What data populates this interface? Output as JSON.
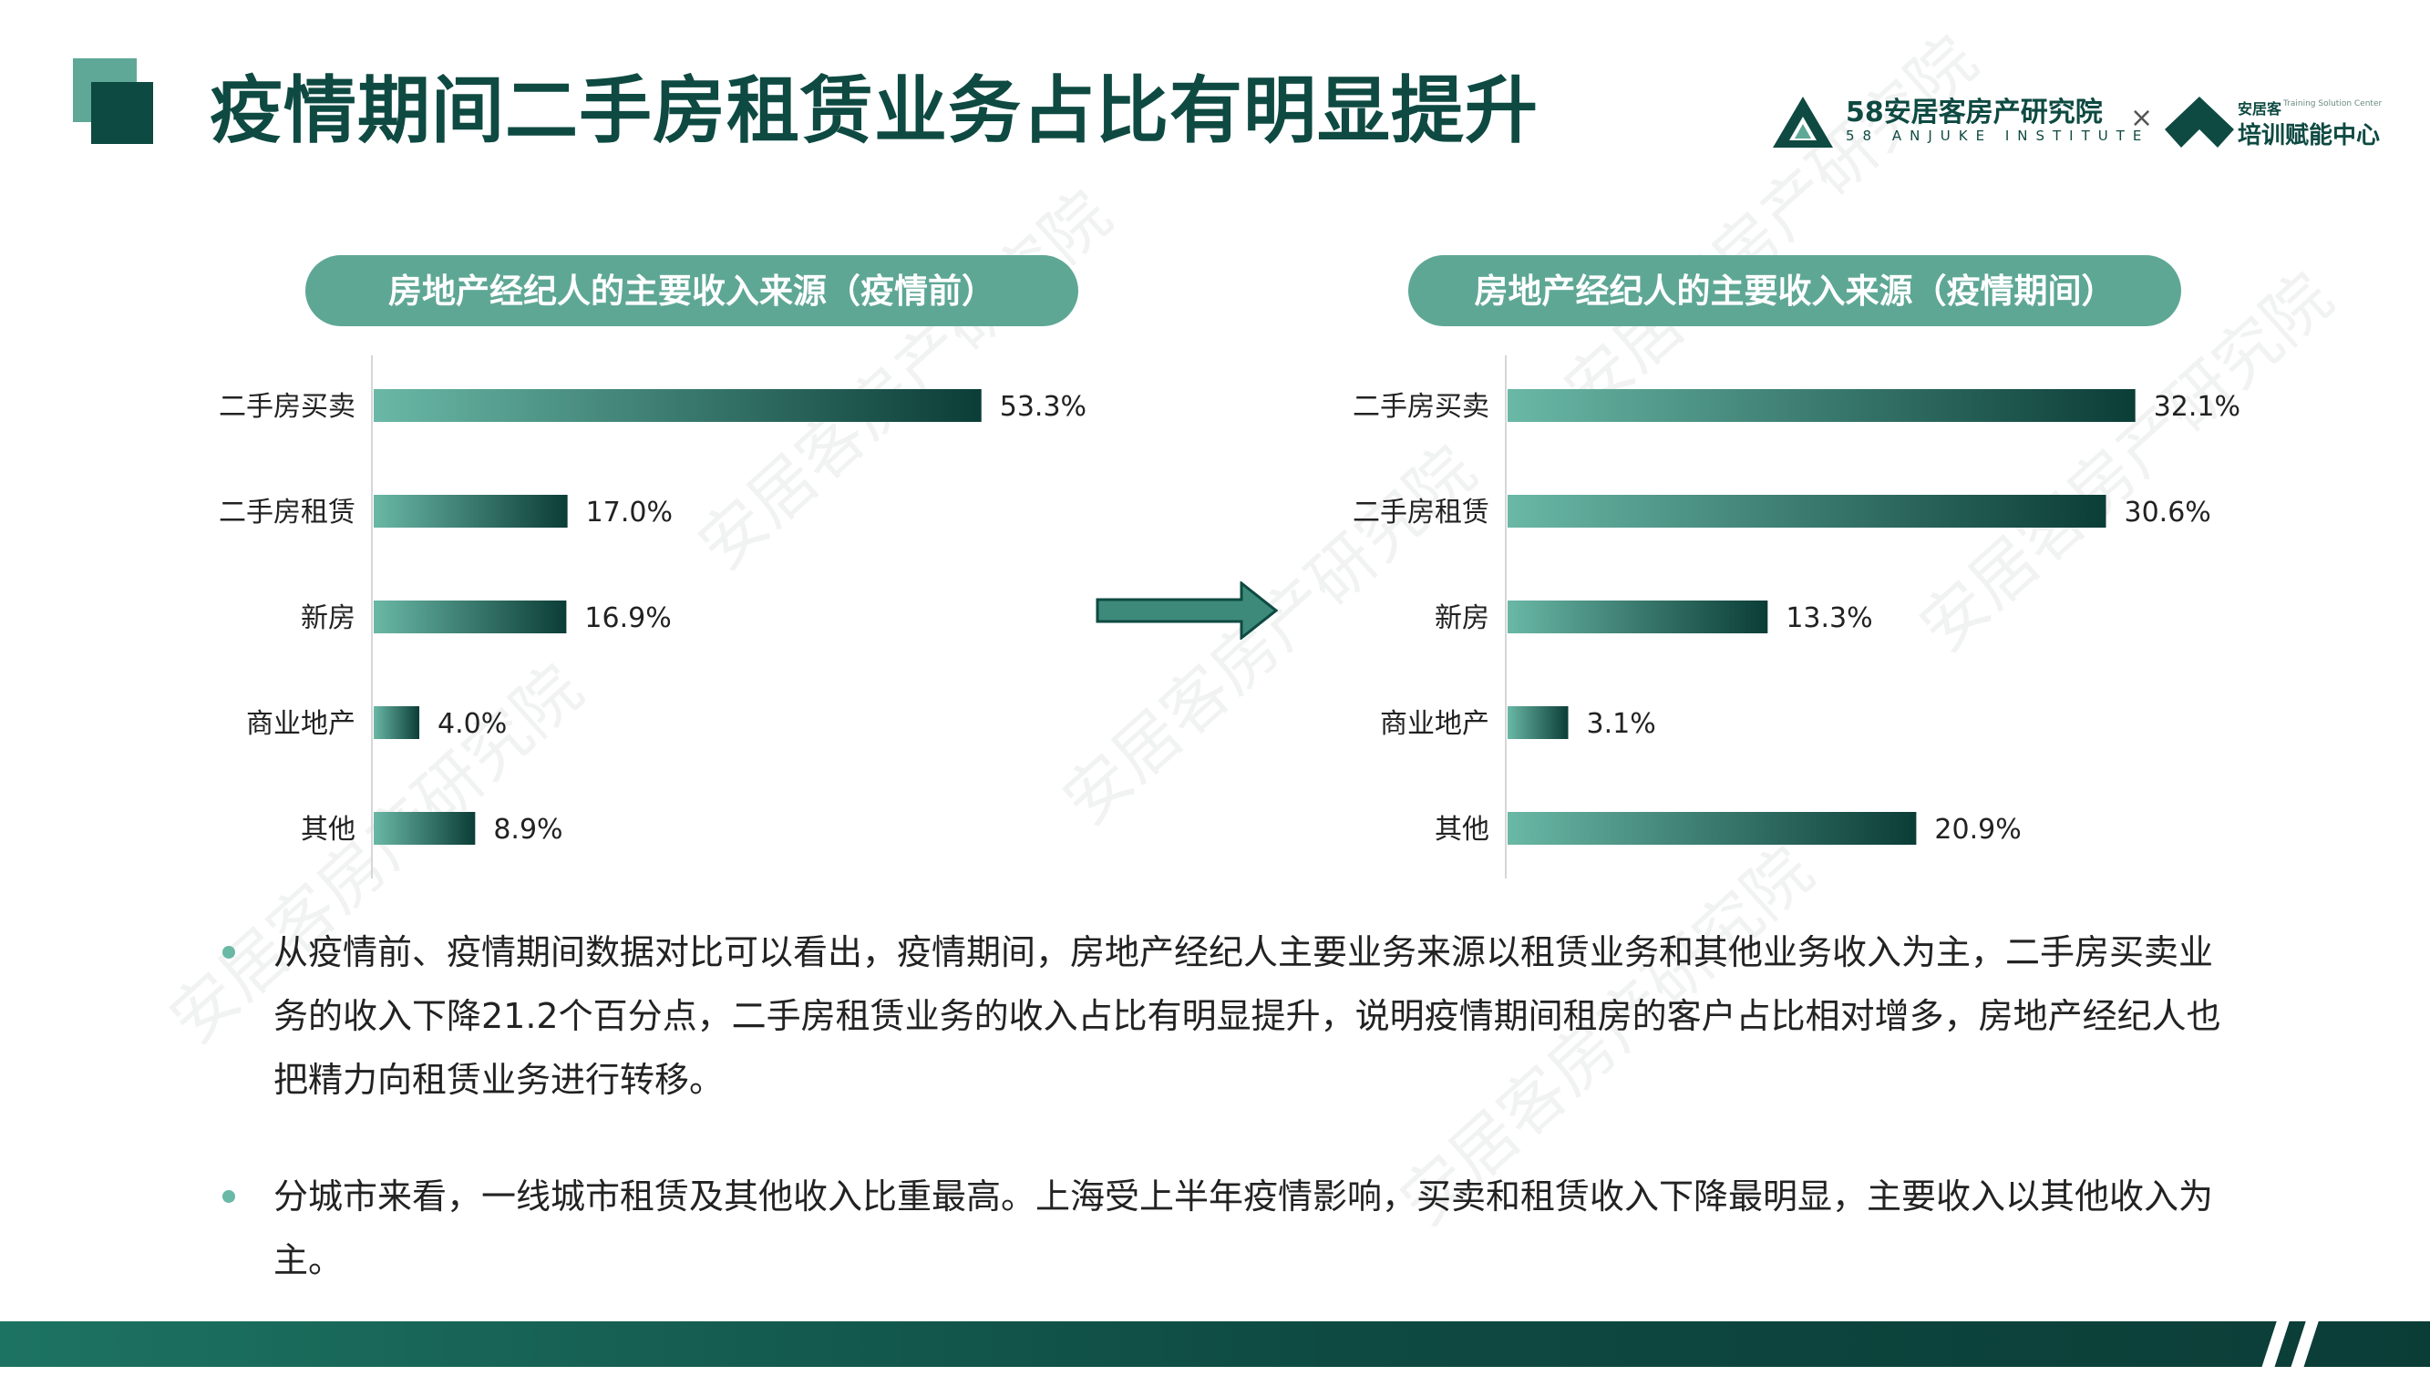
{
  "header": {
    "title": "疫情期间二手房租赁业务占比有明显提升",
    "logo_main": "58安居客房产研究院",
    "logo_sub": "58 ANJUKE INSTITUTE",
    "logo_times": "×",
    "logo_brand": "安居客",
    "logo_brand_sub": "Training Solution Center",
    "logo_center": "培训赋能中心"
  },
  "chart_data": [
    {
      "type": "bar",
      "orientation": "horizontal",
      "title": "房地产经纪人的主要收入来源（疫情前）",
      "categories": [
        "二手房买卖",
        "二手房租赁",
        "新房",
        "商业地产",
        "其他"
      ],
      "values": [
        53.3,
        17.0,
        16.9,
        4.0,
        8.9
      ],
      "value_labels": [
        "53.3%",
        "17.0%",
        "16.9%",
        "4.0%",
        "8.9%"
      ],
      "unit": "%",
      "xlim": [
        0,
        55
      ],
      "grid": false
    },
    {
      "type": "bar",
      "orientation": "horizontal",
      "title": "房地产经纪人的主要收入来源（疫情期间）",
      "categories": [
        "二手房买卖",
        "二手房租赁",
        "新房",
        "商业地产",
        "其他"
      ],
      "values": [
        32.1,
        30.6,
        13.3,
        3.1,
        20.9
      ],
      "value_labels": [
        "32.1%",
        "30.6%",
        "13.3%",
        "3.1%",
        "20.9%"
      ],
      "unit": "%",
      "xlim": [
        0,
        33
      ],
      "grid": false
    }
  ],
  "bullets": [
    "从疫情前、疫情期间数据对比可以看出，疫情期间，房地产经纪人主要业务来源以租赁业务和其他业务收入为主，二手房买卖业务的收入下降21.2个百分点，二手房租赁业务的收入占比有明显提升，说明疫情期间租房的客户占比相对增多，房地产经纪人也把精力向租赁业务进行转移。",
    "分城市来看，一线城市租赁及其他收入比重最高。上海受上半年疫情影响，买卖和租赁收入下降最明显，主要收入以其他收入为主。"
  ],
  "watermark": "安居客房产研究院",
  "colors": {
    "primary_dark": "#0e4a42",
    "primary_light": "#5fa898",
    "bar_start": "#6ab8a6",
    "bar_end": "#0b3d37",
    "pill": "#5ea795"
  }
}
